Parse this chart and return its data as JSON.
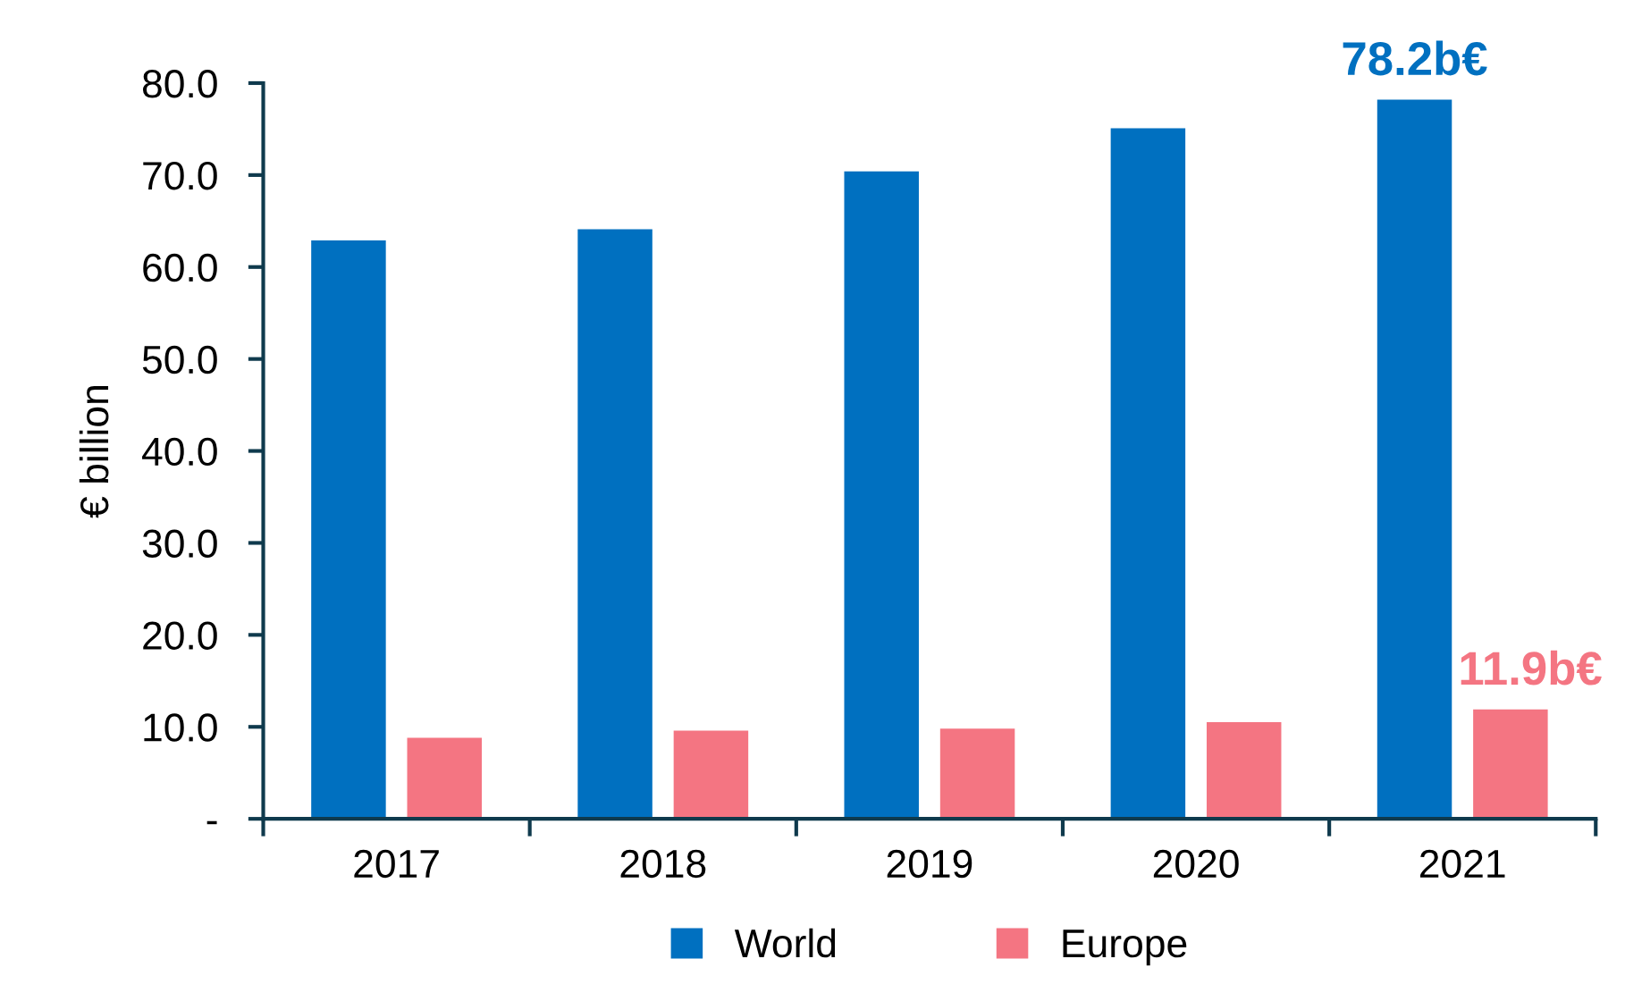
{
  "chart_data": {
    "type": "bar",
    "ylabel": "€ billion",
    "categories": [
      "2017",
      "2018",
      "2019",
      "2020",
      "2021"
    ],
    "series": [
      {
        "name": "World",
        "color": "#0070c0",
        "values": [
          62.9,
          64.1,
          70.4,
          75.1,
          78.2
        ],
        "value_labels": [
          null,
          null,
          null,
          null,
          "78.2b€"
        ]
      },
      {
        "name": "Europe",
        "color": "#f47582",
        "values": [
          8.8,
          9.6,
          9.8,
          10.5,
          11.9
        ],
        "value_labels": [
          null,
          null,
          null,
          null,
          "11.9b€"
        ]
      }
    ],
    "ylim": [
      0,
      80
    ],
    "yticks": [
      {
        "value": 0,
        "label": "-"
      },
      {
        "value": 10,
        "label": "10.0"
      },
      {
        "value": 20,
        "label": "20.0"
      },
      {
        "value": 30,
        "label": "30.0"
      },
      {
        "value": 40,
        "label": "40.0"
      },
      {
        "value": 50,
        "label": "50.0"
      },
      {
        "value": 60,
        "label": "60.0"
      },
      {
        "value": 70,
        "label": "70.0"
      },
      {
        "value": 80,
        "label": "80.0"
      }
    ],
    "grid": false,
    "legend": "bottom"
  }
}
